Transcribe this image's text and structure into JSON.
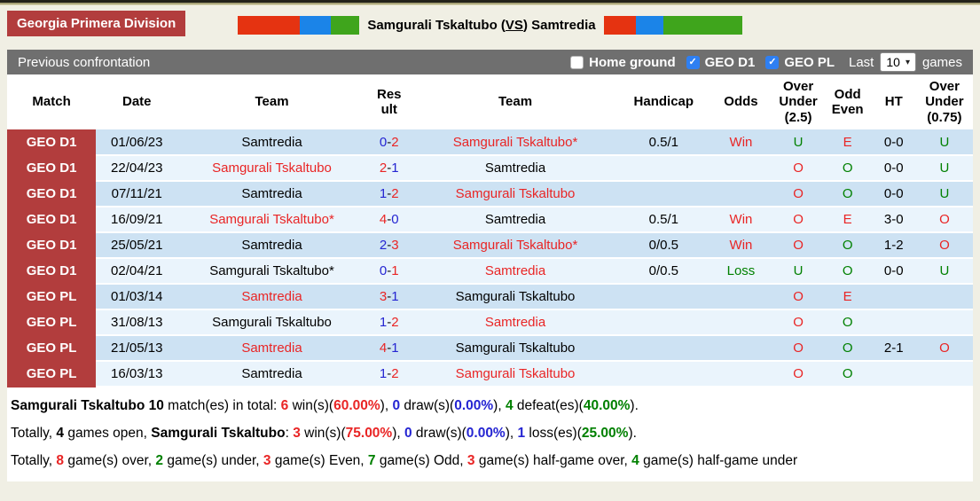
{
  "league_badge": "Georgia Primera Division",
  "title": {
    "home": "Samgurali Tskaltubo",
    "vs": "VS",
    "away": "Samtredia"
  },
  "colors": {
    "badge_red": "#b23d3d",
    "flag_red": "#e53311",
    "flag_blue": "#1b84e8",
    "flag_green": "#3fa51c",
    "section_bar_gray": "#6f6f6f",
    "checkbox_blue": "#2e7ff2",
    "row_dark_blue": "#cde2f3",
    "row_light_blue": "#eaf4fc",
    "text_red": "#e92525",
    "text_blue": "#2525d2",
    "text_green": "#008000"
  },
  "section": {
    "title": "Previous confrontation",
    "filters": [
      {
        "label": "Home ground",
        "checked": false
      },
      {
        "label": "GEO D1",
        "checked": true
      },
      {
        "label": "GEO PL",
        "checked": true
      }
    ],
    "last_label": "Last",
    "last_value": "10",
    "games_label": "games",
    "check_glyph": "✓",
    "chevron_glyph": "▾"
  },
  "table": {
    "headers": [
      "Match",
      "Date",
      "Team",
      "Result",
      "Team",
      "Handicap",
      "Odds",
      "Over Under (2.5)",
      "Odd Even",
      "HT",
      "Over Under (0.75)"
    ],
    "rows": [
      {
        "match": "GEO D1",
        "date": "01/06/23",
        "team1": "Samtredia",
        "team1_color": "black",
        "s1": "0",
        "s1c": "blue",
        "s2": "2",
        "s2c": "red",
        "team2": "Samgurali Tskaltubo*",
        "team2_color": "red",
        "handicap": "0.5/1",
        "odds": "Win",
        "odds_color": "red",
        "ou25": "U",
        "ou25_color": "green",
        "oe": "E",
        "oe_color": "red",
        "ht": "0-0",
        "ou075": "U",
        "ou075_color": "green"
      },
      {
        "match": "GEO D1",
        "date": "22/04/23",
        "team1": "Samgurali Tskaltubo",
        "team1_color": "red",
        "s1": "2",
        "s1c": "red",
        "s2": "1",
        "s2c": "blue",
        "team2": "Samtredia",
        "team2_color": "black",
        "handicap": "",
        "odds": "",
        "odds_color": "black",
        "ou25": "O",
        "ou25_color": "red",
        "oe": "O",
        "oe_color": "green",
        "ht": "0-0",
        "ou075": "U",
        "ou075_color": "green"
      },
      {
        "match": "GEO D1",
        "date": "07/11/21",
        "team1": "Samtredia",
        "team1_color": "black",
        "s1": "1",
        "s1c": "blue",
        "s2": "2",
        "s2c": "red",
        "team2": "Samgurali Tskaltubo",
        "team2_color": "red",
        "handicap": "",
        "odds": "",
        "odds_color": "black",
        "ou25": "O",
        "ou25_color": "red",
        "oe": "O",
        "oe_color": "green",
        "ht": "0-0",
        "ou075": "U",
        "ou075_color": "green"
      },
      {
        "match": "GEO D1",
        "date": "16/09/21",
        "team1": "Samgurali Tskaltubo*",
        "team1_color": "red",
        "s1": "4",
        "s1c": "red",
        "s2": "0",
        "s2c": "blue",
        "team2": "Samtredia",
        "team2_color": "black",
        "handicap": "0.5/1",
        "odds": "Win",
        "odds_color": "red",
        "ou25": "O",
        "ou25_color": "red",
        "oe": "E",
        "oe_color": "red",
        "ht": "3-0",
        "ou075": "O",
        "ou075_color": "red"
      },
      {
        "match": "GEO D1",
        "date": "25/05/21",
        "team1": "Samtredia",
        "team1_color": "black",
        "s1": "2",
        "s1c": "blue",
        "s2": "3",
        "s2c": "red",
        "team2": "Samgurali Tskaltubo*",
        "team2_color": "red",
        "handicap": "0/0.5",
        "odds": "Win",
        "odds_color": "red",
        "ou25": "O",
        "ou25_color": "red",
        "oe": "O",
        "oe_color": "green",
        "ht": "1-2",
        "ou075": "O",
        "ou075_color": "red"
      },
      {
        "match": "GEO D1",
        "date": "02/04/21",
        "team1": "Samgurali Tskaltubo*",
        "team1_color": "black",
        "s1": "0",
        "s1c": "blue",
        "s2": "1",
        "s2c": "red",
        "team2": "Samtredia",
        "team2_color": "red",
        "handicap": "0/0.5",
        "odds": "Loss",
        "odds_color": "green",
        "ou25": "U",
        "ou25_color": "green",
        "oe": "O",
        "oe_color": "green",
        "ht": "0-0",
        "ou075": "U",
        "ou075_color": "green"
      },
      {
        "match": "GEO PL",
        "date": "01/03/14",
        "team1": "Samtredia",
        "team1_color": "red",
        "s1": "3",
        "s1c": "red",
        "s2": "1",
        "s2c": "blue",
        "team2": "Samgurali Tskaltubo",
        "team2_color": "black",
        "handicap": "",
        "odds": "",
        "odds_color": "black",
        "ou25": "O",
        "ou25_color": "red",
        "oe": "E",
        "oe_color": "red",
        "ht": "",
        "ou075": "",
        "ou075_color": "black"
      },
      {
        "match": "GEO PL",
        "date": "31/08/13",
        "team1": "Samgurali Tskaltubo",
        "team1_color": "black",
        "s1": "1",
        "s1c": "blue",
        "s2": "2",
        "s2c": "red",
        "team2": "Samtredia",
        "team2_color": "red",
        "handicap": "",
        "odds": "",
        "odds_color": "black",
        "ou25": "O",
        "ou25_color": "red",
        "oe": "O",
        "oe_color": "green",
        "ht": "",
        "ou075": "",
        "ou075_color": "black"
      },
      {
        "match": "GEO PL",
        "date": "21/05/13",
        "team1": "Samtredia",
        "team1_color": "red",
        "s1": "4",
        "s1c": "red",
        "s2": "1",
        "s2c": "blue",
        "team2": "Samgurali Tskaltubo",
        "team2_color": "black",
        "handicap": "",
        "odds": "",
        "odds_color": "black",
        "ou25": "O",
        "ou25_color": "red",
        "oe": "O",
        "oe_color": "green",
        "ht": "2-1",
        "ou075": "O",
        "ou075_color": "red"
      },
      {
        "match": "GEO PL",
        "date": "16/03/13",
        "team1": "Samtredia",
        "team1_color": "black",
        "s1": "1",
        "s1c": "blue",
        "s2": "2",
        "s2c": "red",
        "team2": "Samgurali Tskaltubo",
        "team2_color": "red",
        "handicap": "",
        "odds": "",
        "odds_color": "black",
        "ou25": "O",
        "ou25_color": "red",
        "oe": "O",
        "oe_color": "green",
        "ht": "",
        "ou075": "",
        "ou075_color": "black"
      }
    ]
  },
  "summary": [
    [
      {
        "t": "Samgurali Tskaltubo 10",
        "b": true
      },
      {
        "t": " match(es) in total: "
      },
      {
        "t": "6",
        "b": true,
        "c": "red"
      },
      {
        "t": " win(s)("
      },
      {
        "t": "60.00%",
        "b": true,
        "c": "red"
      },
      {
        "t": "), "
      },
      {
        "t": "0",
        "b": true,
        "c": "blue"
      },
      {
        "t": " draw(s)("
      },
      {
        "t": "0.00%",
        "b": true,
        "c": "blue"
      },
      {
        "t": "), "
      },
      {
        "t": "4",
        "b": true,
        "c": "green"
      },
      {
        "t": " defeat(es)("
      },
      {
        "t": "40.00%",
        "b": true,
        "c": "green"
      },
      {
        "t": ")."
      }
    ],
    [
      {
        "t": "Totally, "
      },
      {
        "t": "4",
        "b": true
      },
      {
        "t": " games open, "
      },
      {
        "t": "Samgurali Tskaltubo",
        "b": true
      },
      {
        "t": ": "
      },
      {
        "t": "3",
        "b": true,
        "c": "red"
      },
      {
        "t": " win(s)("
      },
      {
        "t": "75.00%",
        "b": true,
        "c": "red"
      },
      {
        "t": "), "
      },
      {
        "t": "0",
        "b": true,
        "c": "blue"
      },
      {
        "t": " draw(s)("
      },
      {
        "t": "0.00%",
        "b": true,
        "c": "blue"
      },
      {
        "t": "), "
      },
      {
        "t": "1",
        "b": true,
        "c": "blue"
      },
      {
        "t": " loss(es)("
      },
      {
        "t": "25.00%",
        "b": true,
        "c": "green"
      },
      {
        "t": ")."
      }
    ],
    [
      {
        "t": "Totally, "
      },
      {
        "t": "8",
        "b": true,
        "c": "red"
      },
      {
        "t": " game(s) over, "
      },
      {
        "t": "2",
        "b": true,
        "c": "green"
      },
      {
        "t": " game(s) under, "
      },
      {
        "t": "3",
        "b": true,
        "c": "red"
      },
      {
        "t": " game(s) Even, "
      },
      {
        "t": "7",
        "b": true,
        "c": "green"
      },
      {
        "t": " game(s) Odd, "
      },
      {
        "t": "3",
        "b": true,
        "c": "red"
      },
      {
        "t": " game(s) half-game over, "
      },
      {
        "t": "4",
        "b": true,
        "c": "green"
      },
      {
        "t": " game(s) half-game under"
      }
    ]
  ]
}
